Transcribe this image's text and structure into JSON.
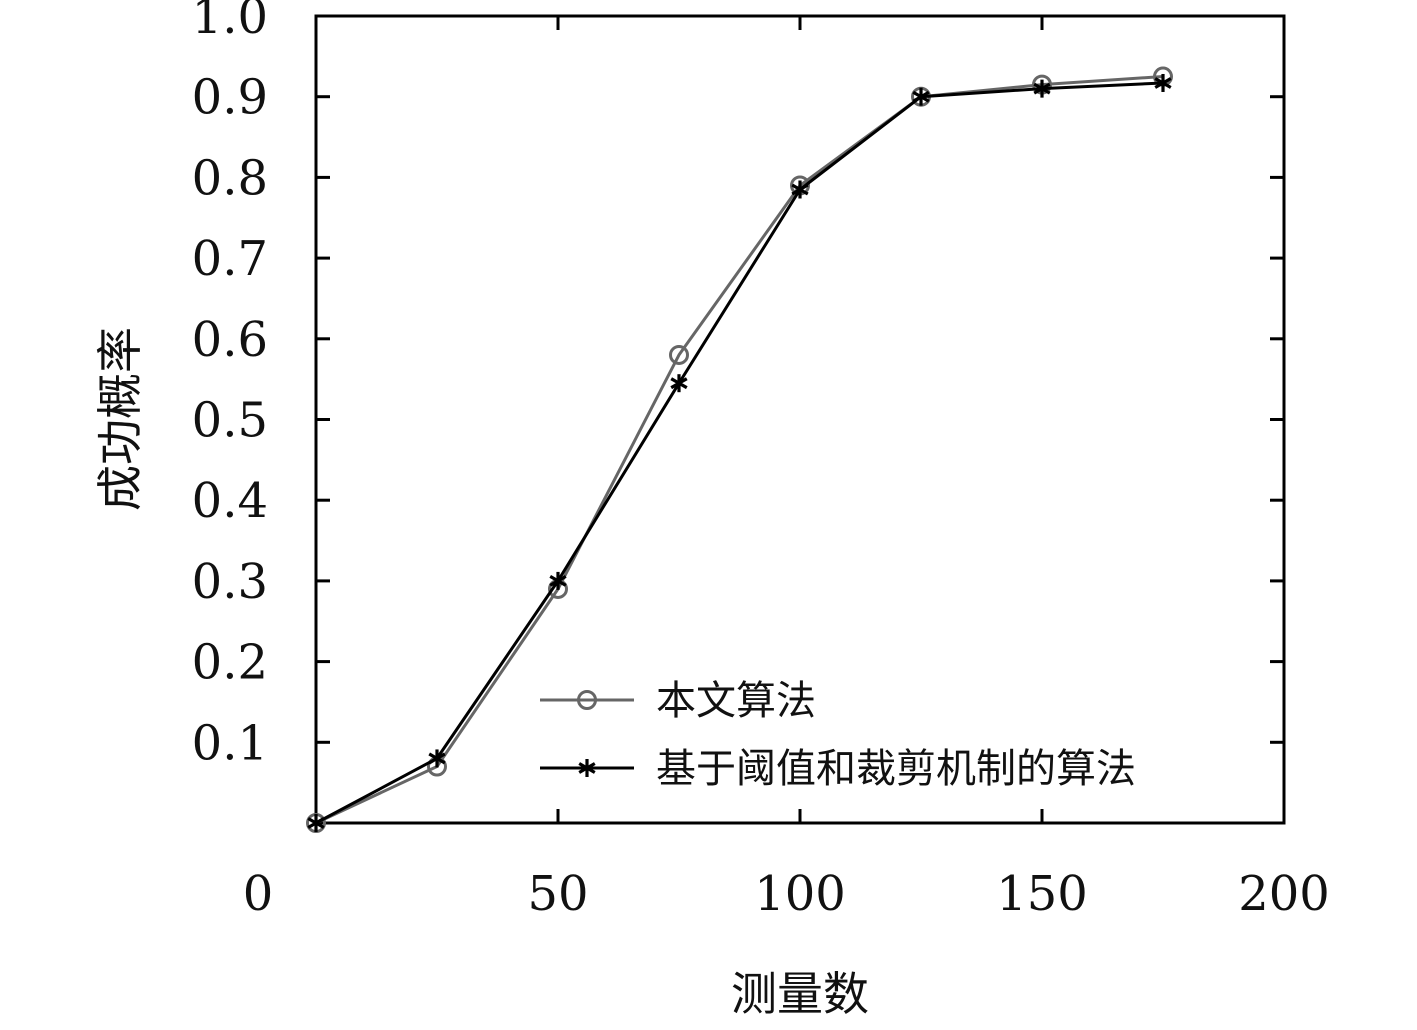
{
  "chart_data": {
    "type": "line",
    "xlabel": "测量数",
    "ylabel": "成功概率",
    "xlim": [
      0,
      200
    ],
    "ylim": [
      0,
      1.0
    ],
    "xticks": [
      0,
      50,
      100,
      150,
      200
    ],
    "yticks": [
      0.1,
      0.2,
      0.3,
      0.4,
      0.5,
      0.6,
      0.7,
      0.8,
      0.9,
      1.0
    ],
    "xtick_labels": [
      "0",
      "50",
      "100",
      "150",
      "200"
    ],
    "ytick_labels": [
      "0.1",
      "0.2",
      "0.3",
      "0.4",
      "0.5",
      "0.6",
      "0.7",
      "0.8",
      "0.9",
      "1.0"
    ],
    "grid": false,
    "legend_position": "bottom-right",
    "series": [
      {
        "name": "本文算法",
        "marker": "circle",
        "color": "#666666",
        "x": [
          0,
          25,
          50,
          75,
          100,
          125,
          150,
          175
        ],
        "y": [
          0.0,
          0.07,
          0.29,
          0.58,
          0.79,
          0.9,
          0.915,
          0.925
        ]
      },
      {
        "name": "基于阈值和裁剪机制的算法",
        "marker": "star",
        "color": "#000000",
        "x": [
          0,
          25,
          50,
          75,
          100,
          125,
          150,
          175
        ],
        "y": [
          0.0,
          0.08,
          0.3,
          0.545,
          0.785,
          0.9,
          0.91,
          0.917
        ]
      }
    ]
  }
}
